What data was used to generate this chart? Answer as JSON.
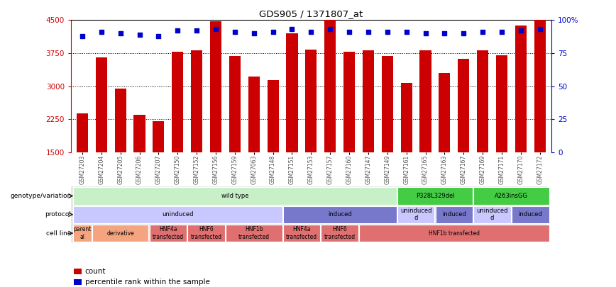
{
  "title": "GDS905 / 1371807_at",
  "samples": [
    "GSM27203",
    "GSM27204",
    "GSM27205",
    "GSM27206",
    "GSM27207",
    "GSM27150",
    "GSM27152",
    "GSM27156",
    "GSM27159",
    "GSM27063",
    "GSM27148",
    "GSM27151",
    "GSM27153",
    "GSM27157",
    "GSM27160",
    "GSM27147",
    "GSM27149",
    "GSM27161",
    "GSM27165",
    "GSM27163",
    "GSM27167",
    "GSM27169",
    "GSM27171",
    "GSM27170",
    "GSM27172"
  ],
  "counts": [
    2380,
    3660,
    2940,
    2340,
    2200,
    3780,
    3820,
    4480,
    3680,
    3220,
    3140,
    4200,
    3830,
    4500,
    3780,
    3820,
    3680,
    3080,
    3820,
    3290,
    3620,
    3810,
    3700,
    4380,
    4500
  ],
  "percentiles": [
    88,
    91,
    90,
    89,
    88,
    92,
    92,
    93,
    91,
    90,
    91,
    93,
    91,
    93,
    91,
    91,
    91,
    91,
    90,
    90,
    90,
    91,
    91,
    92,
    93
  ],
  "ylim_left": [
    1500,
    4500
  ],
  "ylim_right": [
    0,
    100
  ],
  "yticks_left": [
    1500,
    2250,
    3000,
    3750,
    4500
  ],
  "yticks_right": [
    0,
    25,
    50,
    75,
    100
  ],
  "bar_color": "#cc0000",
  "dot_color": "#0000cc",
  "bg_color": "#f0f0f0",
  "annotation_rows": [
    {
      "label": "genotype/variation",
      "segments": [
        {
          "text": "wild type",
          "start": 0,
          "end": 17,
          "color": "#c8f0c8"
        },
        {
          "text": "P328L329del",
          "start": 17,
          "end": 21,
          "color": "#44cc44"
        },
        {
          "text": "A263insGG",
          "start": 21,
          "end": 25,
          "color": "#44cc44"
        }
      ]
    },
    {
      "label": "protocol",
      "segments": [
        {
          "text": "uninduced",
          "start": 0,
          "end": 11,
          "color": "#c8c8ff"
        },
        {
          "text": "induced",
          "start": 11,
          "end": 17,
          "color": "#7777cc"
        },
        {
          "text": "uninduced\nd",
          "start": 17,
          "end": 19,
          "color": "#c8c8ff"
        },
        {
          "text": "induced",
          "start": 19,
          "end": 21,
          "color": "#7777cc"
        },
        {
          "text": "uninduced\nd",
          "start": 21,
          "end": 23,
          "color": "#c8c8ff"
        },
        {
          "text": "induced",
          "start": 23,
          "end": 25,
          "color": "#7777cc"
        }
      ]
    },
    {
      "label": "cell line",
      "segments": [
        {
          "text": "parent\nal",
          "start": 0,
          "end": 1,
          "color": "#f4a580"
        },
        {
          "text": "derivative",
          "start": 1,
          "end": 4,
          "color": "#f4a580"
        },
        {
          "text": "HNF4a\ntransfected",
          "start": 4,
          "end": 6,
          "color": "#e07070"
        },
        {
          "text": "HNF6\ntransfected",
          "start": 6,
          "end": 8,
          "color": "#e07070"
        },
        {
          "text": "HNF1b\ntransfected",
          "start": 8,
          "end": 11,
          "color": "#e07070"
        },
        {
          "text": "HNF4a\ntransfected",
          "start": 11,
          "end": 13,
          "color": "#e07070"
        },
        {
          "text": "HNF6\ntransfected",
          "start": 13,
          "end": 15,
          "color": "#e07070"
        },
        {
          "text": "HNF1b transfected",
          "start": 15,
          "end": 25,
          "color": "#e07070"
        }
      ]
    }
  ],
  "legend_items": [
    {
      "label": "count",
      "color": "#cc0000"
    },
    {
      "label": "percentile rank within the sample",
      "color": "#0000cc"
    }
  ]
}
